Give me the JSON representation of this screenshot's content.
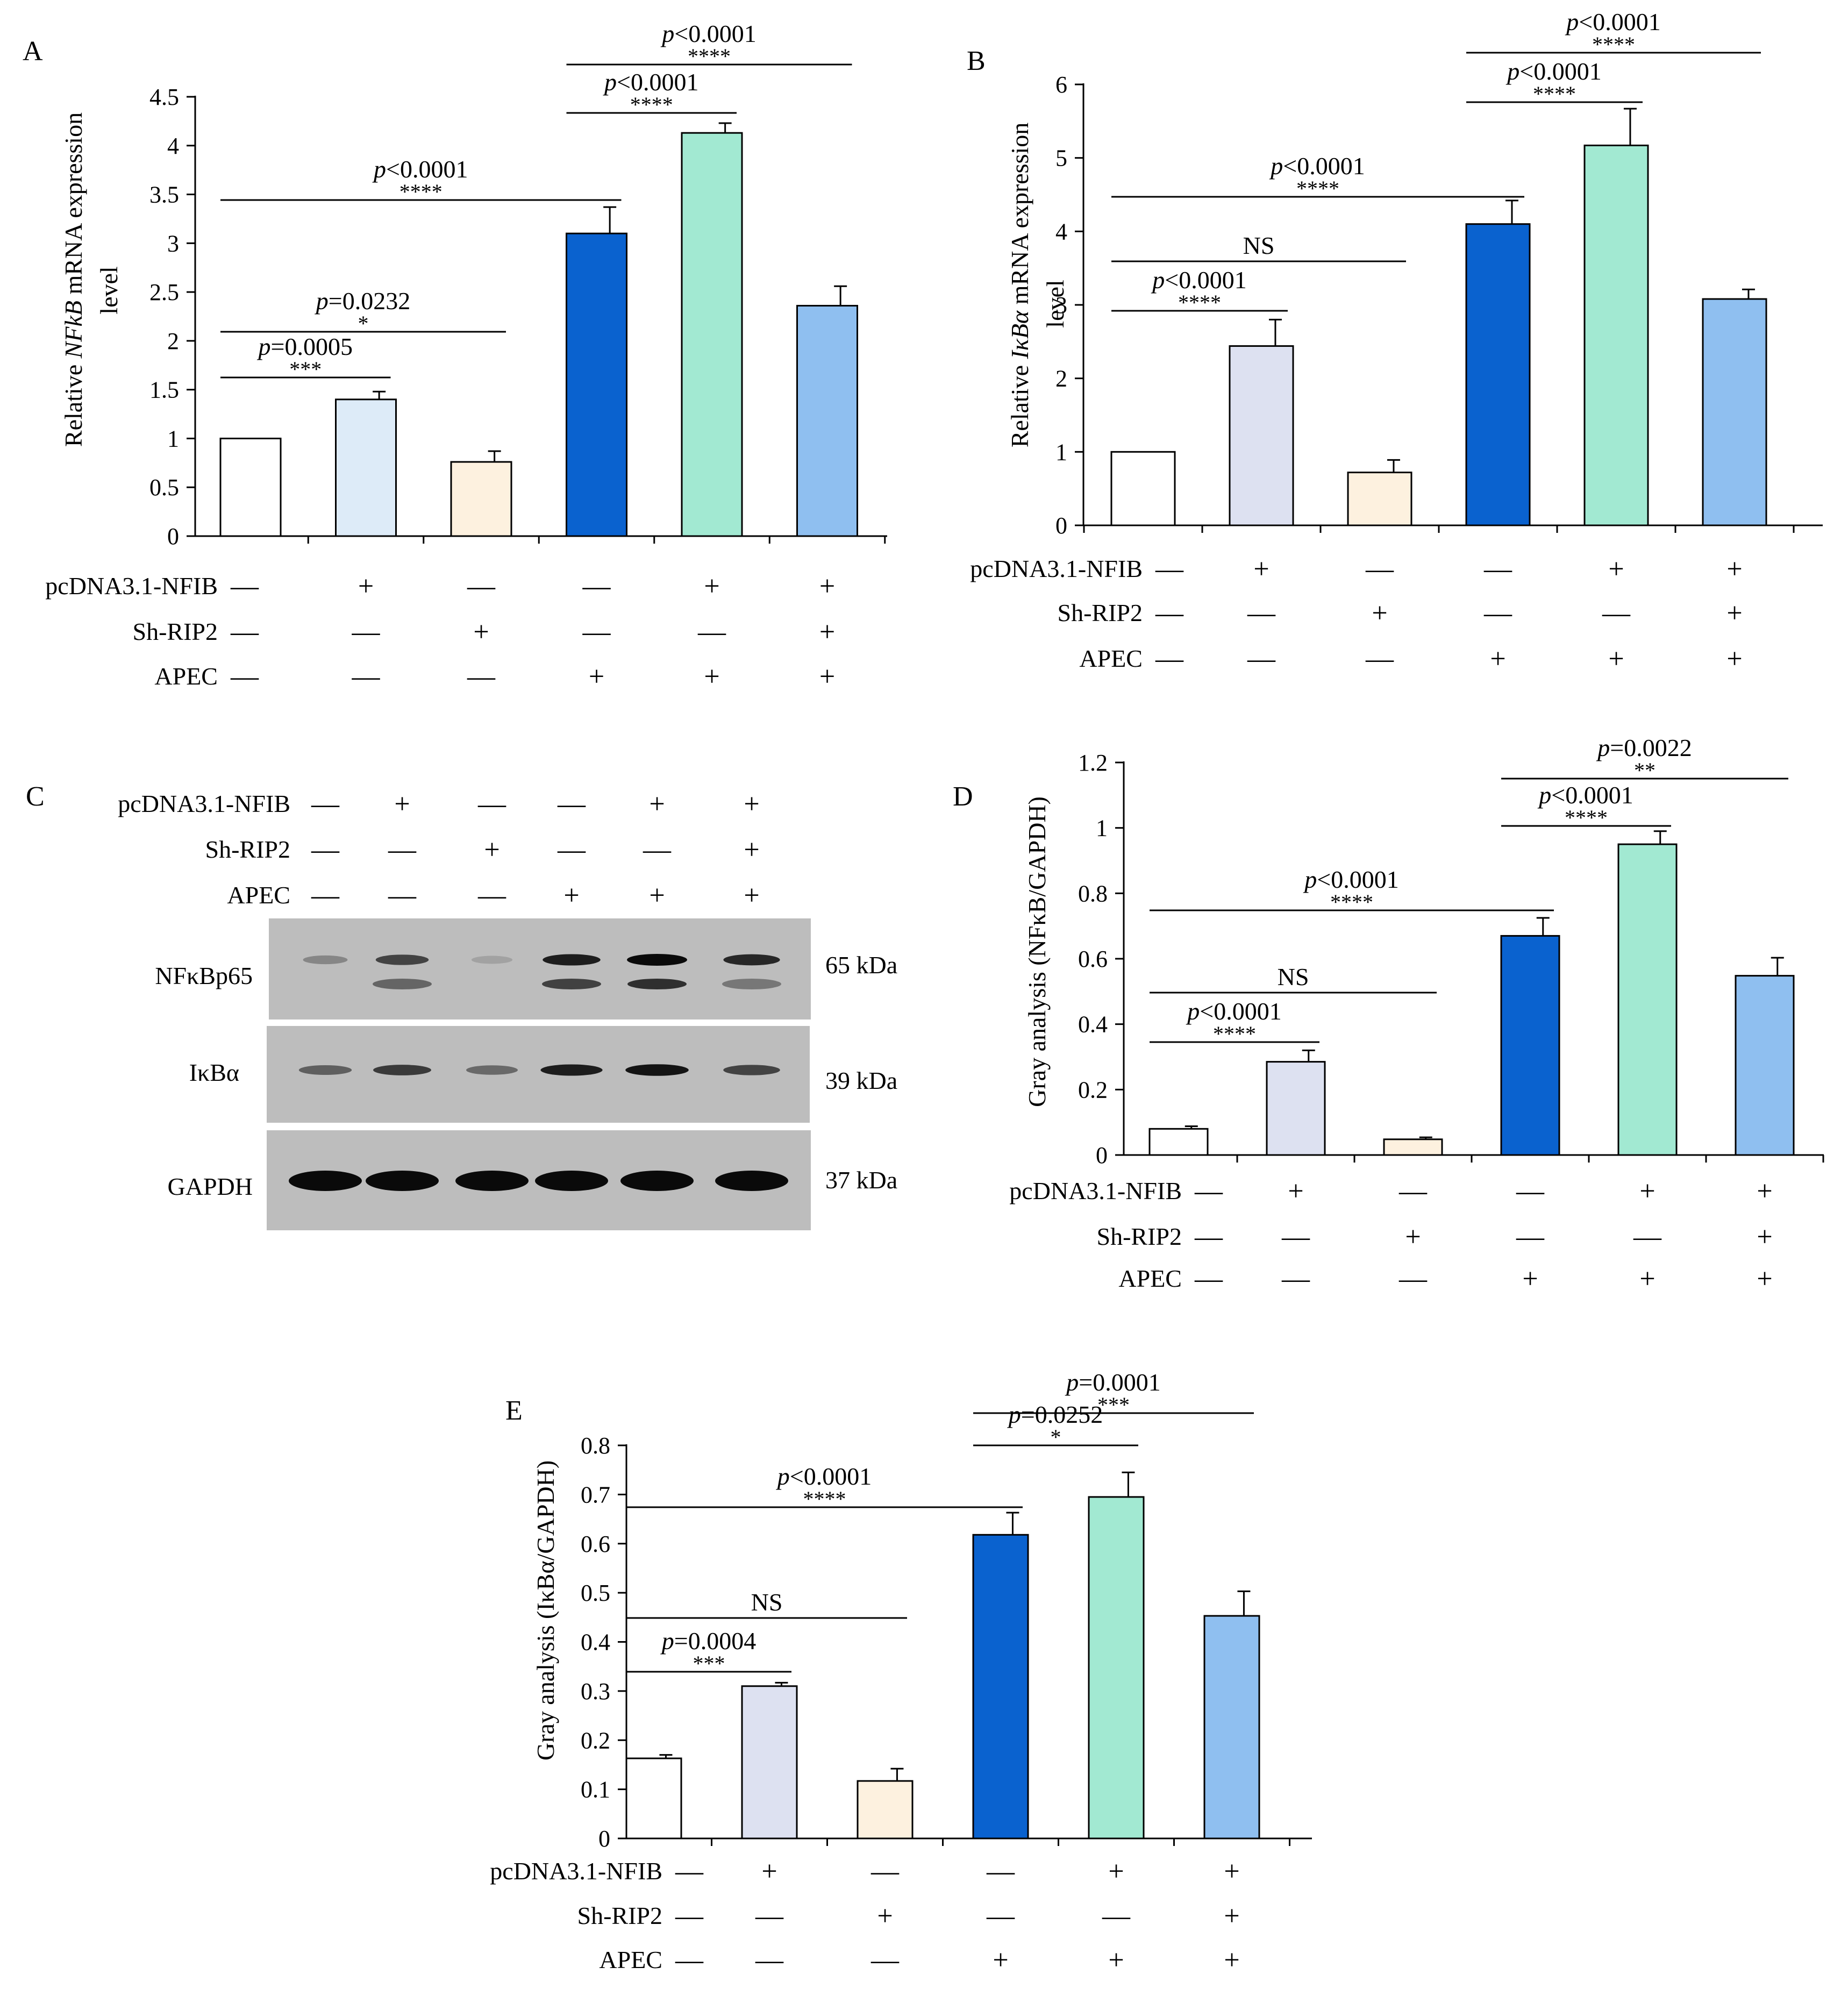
{
  "chart_data": [
    {
      "panel": "A",
      "type": "bar",
      "ylabel_pre": "Relative ",
      "ylabel_gene": "NFkB",
      "ylabel_post": " mRNA expression",
      "ylabel_line2": "level",
      "ylim": [
        0,
        4.5
      ],
      "yticks": [
        "0",
        "0.5",
        "1",
        "1.5",
        "2",
        "2.5",
        "3",
        "3.5",
        "4",
        "4.5"
      ],
      "values": [
        1.0,
        1.4,
        0.76,
        3.1,
        4.13,
        2.36
      ],
      "errors": [
        0.0,
        0.08,
        0.11,
        0.27,
        0.1,
        0.2
      ],
      "colors": [
        "#ffffff",
        "#ddebf8",
        "#fdf1df",
        "#0a62cf",
        "#a2e9d2",
        "#8fbff0"
      ],
      "comparisons": [
        {
          "from": 1,
          "to": 2,
          "p": "=0.0005",
          "stars": "***"
        },
        {
          "from": 1,
          "to": 3,
          "p": "=0.0232",
          "stars": "*"
        },
        {
          "from": 1,
          "to": 4,
          "p": "<0.0001",
          "stars": "****"
        },
        {
          "from": 4,
          "to": 5,
          "p": "<0.0001",
          "stars": "****"
        },
        {
          "from": 4,
          "to": 6,
          "p": "<0.0001",
          "stars": "****"
        }
      ],
      "conditions": [
        {
          "label": "pcDNA3.1-NFIB",
          "signs": [
            "—",
            "+",
            "—",
            "—",
            "+",
            "+"
          ]
        },
        {
          "label": "Sh-RIP2",
          "signs": [
            "—",
            "—",
            "+",
            "—",
            "—",
            "+"
          ]
        },
        {
          "label": "APEC",
          "signs": [
            "—",
            "—",
            "—",
            "+",
            "+",
            "+"
          ]
        }
      ]
    },
    {
      "panel": "B",
      "type": "bar",
      "ylabel_pre": "Relative ",
      "ylabel_gene": "IκBα",
      "ylabel_post": " mRNA expression",
      "ylabel_line2": "level",
      "ylim": [
        0,
        6
      ],
      "yticks": [
        "0",
        "1",
        "2",
        "3",
        "4",
        "5",
        "6"
      ],
      "values": [
        1.0,
        2.44,
        0.72,
        4.1,
        5.17,
        3.08
      ],
      "errors": [
        0.0,
        0.36,
        0.17,
        0.32,
        0.5,
        0.13
      ],
      "colors": [
        "#ffffff",
        "#dde1f1",
        "#fdf1df",
        "#0a62cf",
        "#a2e9d2",
        "#8fbff0"
      ],
      "comparisons": [
        {
          "from": 1,
          "to": 2,
          "p": "<0.0001",
          "stars": "****"
        },
        {
          "from": 1,
          "to": 3,
          "label": "NS"
        },
        {
          "from": 1,
          "to": 4,
          "p": "<0.0001",
          "stars": "****"
        },
        {
          "from": 4,
          "to": 5,
          "p": "<0.0001",
          "stars": "****"
        },
        {
          "from": 4,
          "to": 6,
          "p": "<0.0001",
          "stars": "****"
        }
      ],
      "conditions": [
        {
          "label": "pcDNA3.1-NFIB",
          "signs": [
            "—",
            "+",
            "—",
            "—",
            "+",
            "+"
          ]
        },
        {
          "label": "Sh-RIP2",
          "signs": [
            "—",
            "—",
            "+",
            "—",
            "—",
            "+"
          ]
        },
        {
          "label": "APEC",
          "signs": [
            "—",
            "—",
            "—",
            "+",
            "+",
            "+"
          ]
        }
      ]
    },
    {
      "panel": "D",
      "type": "bar",
      "ylabel": "Gray analysis (NFκB/GAPDH)",
      "ylim": [
        0,
        1.2
      ],
      "yticks": [
        "0",
        "0.2",
        "0.4",
        "0.6",
        "0.8",
        "1",
        "1.2"
      ],
      "values": [
        0.08,
        0.285,
        0.048,
        0.67,
        0.95,
        0.548
      ],
      "errors": [
        0.008,
        0.035,
        0.006,
        0.055,
        0.04,
        0.055
      ],
      "colors": [
        "#ffffff",
        "#dde1f1",
        "#fdf1df",
        "#0a62cf",
        "#a2e9d2",
        "#8fbff0"
      ],
      "comparisons": [
        {
          "from": 1,
          "to": 2,
          "p": "<0.0001",
          "stars": "****"
        },
        {
          "from": 1,
          "to": 3,
          "label": "NS"
        },
        {
          "from": 1,
          "to": 4,
          "p": "<0.0001",
          "stars": "****"
        },
        {
          "from": 4,
          "to": 5,
          "p": "<0.0001",
          "stars": "****"
        },
        {
          "from": 4,
          "to": 6,
          "p": "=0.0022",
          "stars": "**"
        }
      ],
      "conditions": [
        {
          "label": "pcDNA3.1-NFIB",
          "signs": [
            "—",
            "+",
            "—",
            "—",
            "+",
            "+"
          ]
        },
        {
          "label": "Sh-RIP2",
          "signs": [
            "—",
            "—",
            "+",
            "—",
            "—",
            "+"
          ]
        },
        {
          "label": "APEC",
          "signs": [
            "—",
            "—",
            "—",
            "+",
            "+",
            "+"
          ]
        }
      ]
    },
    {
      "panel": "E",
      "type": "bar",
      "ylabel": "Gray analysis (IκBα/GAPDH)",
      "ylim": [
        0,
        0.8
      ],
      "yticks": [
        "0",
        "0.1",
        "0.2",
        "0.3",
        "0.4",
        "0.5",
        "0.6",
        "0.7",
        "0.8"
      ],
      "values": [
        0.163,
        0.31,
        0.117,
        0.618,
        0.695,
        0.453
      ],
      "errors": [
        0.007,
        0.007,
        0.025,
        0.045,
        0.05,
        0.05
      ],
      "colors": [
        "#ffffff",
        "#dde1f1",
        "#fdf1df",
        "#0a62cf",
        "#a2e9d2",
        "#8fbff0"
      ],
      "comparisons": [
        {
          "from": 1,
          "to": 2,
          "p": "=0.0004",
          "stars": "***"
        },
        {
          "from": 1,
          "to": 3,
          "label": "NS"
        },
        {
          "from": 1,
          "to": 4,
          "p": "<0.0001",
          "stars": "****"
        },
        {
          "from": 4,
          "to": 5,
          "p": "=0.0252",
          "stars": "*"
        },
        {
          "from": 4,
          "to": 6,
          "p": "=0.0001",
          "stars": "***"
        }
      ],
      "conditions": [
        {
          "label": "pcDNA3.1-NFIB",
          "signs": [
            "—",
            "+",
            "—",
            "—",
            "+",
            "+"
          ]
        },
        {
          "label": "Sh-RIP2",
          "signs": [
            "—",
            "—",
            "+",
            "—",
            "—",
            "+"
          ]
        },
        {
          "label": "APEC",
          "signs": [
            "—",
            "—",
            "—",
            "+",
            "+",
            "+"
          ]
        }
      ]
    }
  ],
  "western_blot": {
    "panel": "C",
    "conditions": [
      {
        "label": "pcDNA3.1-NFIB",
        "signs": [
          "—",
          "+",
          "—",
          "—",
          "+",
          "+"
        ]
      },
      {
        "label": "Sh-RIP2",
        "signs": [
          "—",
          "—",
          "+",
          "—",
          "—",
          "+"
        ]
      },
      {
        "label": "APEC",
        "signs": [
          "—",
          "—",
          "—",
          "+",
          "+",
          "+"
        ]
      }
    ],
    "blots": [
      {
        "protein": "NFκBp65",
        "size": "65 kDa",
        "bands": [
          0.35,
          0.7,
          0.2,
          0.9,
          1.0,
          0.85
        ],
        "lower_bands": [
          0.0,
          0.55,
          0.0,
          0.75,
          0.85,
          0.45
        ]
      },
      {
        "protein": "IκBα",
        "size": "39 kDa",
        "bands": [
          0.55,
          0.75,
          0.5,
          0.9,
          0.95,
          0.7
        ]
      },
      {
        "protein": "GAPDH",
        "size": "37 kDa",
        "bands": [
          1.0,
          1.0,
          1.0,
          1.0,
          1.0,
          1.0
        ]
      }
    ]
  }
}
